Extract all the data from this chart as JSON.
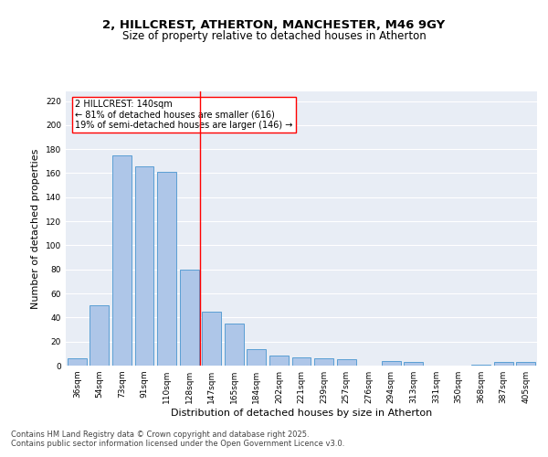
{
  "title1": "2, HILLCREST, ATHERTON, MANCHESTER, M46 9GY",
  "title2": "Size of property relative to detached houses in Atherton",
  "xlabel": "Distribution of detached houses by size in Atherton",
  "ylabel": "Number of detached properties",
  "bar_labels": [
    "36sqm",
    "54sqm",
    "73sqm",
    "91sqm",
    "110sqm",
    "128sqm",
    "147sqm",
    "165sqm",
    "184sqm",
    "202sqm",
    "221sqm",
    "239sqm",
    "257sqm",
    "276sqm",
    "294sqm",
    "313sqm",
    "331sqm",
    "350sqm",
    "368sqm",
    "387sqm",
    "405sqm"
  ],
  "bar_values": [
    6,
    50,
    175,
    166,
    161,
    80,
    45,
    35,
    14,
    8,
    7,
    6,
    5,
    0,
    4,
    3,
    0,
    0,
    1,
    3,
    3
  ],
  "bar_color": "#aec6e8",
  "bar_edge_color": "#5a9fd4",
  "vline_x_index": 6,
  "vline_color": "red",
  "annotation_line1": "2 HILLCREST: 140sqm",
  "annotation_line2": "← 81% of detached houses are smaller (616)",
  "annotation_line3": "19% of semi-detached houses are larger (146) →",
  "annotation_box_color": "white",
  "annotation_box_edge_color": "red",
  "ylim": [
    0,
    228
  ],
  "yticks": [
    0,
    20,
    40,
    60,
    80,
    100,
    120,
    140,
    160,
    180,
    200,
    220
  ],
  "bg_color": "#e8edf5",
  "title_fontsize": 9.5,
  "subtitle_fontsize": 8.5,
  "tick_fontsize": 6.5,
  "ylabel_fontsize": 8,
  "xlabel_fontsize": 8,
  "annot_fontsize": 7,
  "footer_text": "Contains HM Land Registry data © Crown copyright and database right 2025.\nContains public sector information licensed under the Open Government Licence v3.0."
}
